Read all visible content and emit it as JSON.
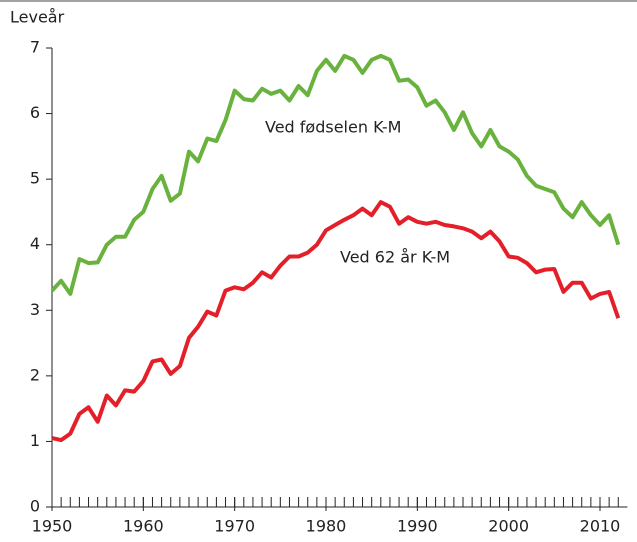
{
  "chart_data": {
    "type": "line",
    "y_label": "Leveår",
    "x": [
      1950,
      1951,
      1952,
      1953,
      1954,
      1955,
      1956,
      1957,
      1958,
      1959,
      1960,
      1961,
      1962,
      1963,
      1964,
      1965,
      1966,
      1967,
      1968,
      1969,
      1970,
      1971,
      1972,
      1973,
      1974,
      1975,
      1976,
      1977,
      1978,
      1979,
      1980,
      1981,
      1982,
      1983,
      1984,
      1985,
      1986,
      1987,
      1988,
      1989,
      1990,
      1991,
      1992,
      1993,
      1994,
      1995,
      1996,
      1997,
      1998,
      1999,
      2000,
      2001,
      2002,
      2003,
      2004,
      2005,
      2006,
      2007,
      2008,
      2009,
      2010,
      2011,
      2012
    ],
    "series": [
      {
        "name": "Ved fødselen K-M",
        "color": "#6ab23e",
        "values": [
          3.3,
          3.45,
          3.25,
          3.78,
          3.72,
          3.73,
          4.0,
          4.12,
          4.12,
          4.38,
          4.5,
          4.85,
          5.05,
          4.67,
          4.78,
          5.42,
          5.27,
          5.62,
          5.58,
          5.9,
          6.35,
          6.22,
          6.2,
          6.38,
          6.3,
          6.35,
          6.2,
          6.42,
          6.28,
          6.65,
          6.82,
          6.65,
          6.88,
          6.82,
          6.62,
          6.82,
          6.88,
          6.82,
          6.5,
          6.52,
          6.4,
          6.12,
          6.2,
          6.02,
          5.75,
          6.02,
          5.7,
          5.5,
          5.75,
          5.5,
          5.42,
          5.3,
          5.05,
          4.9,
          4.85,
          4.8,
          4.55,
          4.42,
          4.65,
          4.45,
          4.3,
          4.45,
          4.0
        ]
      },
      {
        "name": "Ved 62 år K-M",
        "color": "#e3202a",
        "values": [
          1.05,
          1.02,
          1.12,
          1.42,
          1.52,
          1.3,
          1.7,
          1.55,
          1.78,
          1.76,
          1.92,
          2.22,
          2.25,
          2.03,
          2.15,
          2.58,
          2.75,
          2.98,
          2.92,
          3.3,
          3.35,
          3.32,
          3.42,
          3.58,
          3.5,
          3.68,
          3.82,
          3.82,
          3.88,
          4.0,
          4.22,
          4.3,
          4.38,
          4.45,
          4.55,
          4.45,
          4.65,
          4.58,
          4.32,
          4.42,
          4.35,
          4.32,
          4.35,
          4.3,
          4.28,
          4.25,
          4.2,
          4.1,
          4.2,
          4.05,
          3.82,
          3.8,
          3.72,
          3.58,
          3.62,
          3.63,
          3.28,
          3.42,
          3.42,
          3.18,
          3.25,
          3.28,
          2.88
        ]
      }
    ],
    "xlim": [
      1950,
      2013
    ],
    "xticks": [
      1950,
      1960,
      1970,
      1980,
      1990,
      2000,
      2010
    ],
    "ylim": [
      0,
      7
    ],
    "yticks": [
      0,
      1,
      2,
      3,
      4,
      5,
      6,
      7
    ]
  }
}
